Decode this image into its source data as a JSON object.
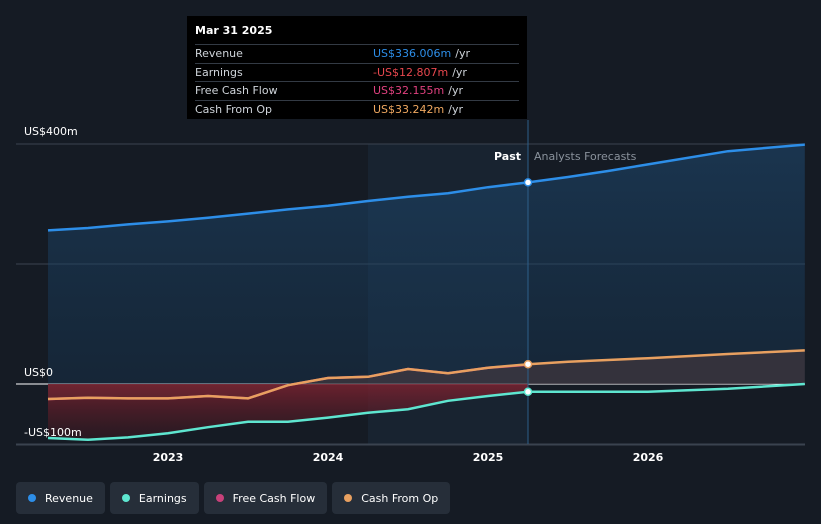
{
  "chart_data": {
    "type": "area",
    "y_unit_prefix": "US$",
    "y_axis_labels": [
      "US$400m",
      "US$0",
      "-US$100m"
    ],
    "ylim": [
      -100,
      400
    ],
    "x_tick_labels": [
      "2023",
      "2024",
      "2025",
      "2026"
    ],
    "past_label": "Past",
    "forecast_label": "Analysts Forecasts",
    "divider_date": 2025.25,
    "series": [
      {
        "name": "Revenue",
        "color": "#2d8ee8",
        "points": [
          [
            2022.25,
            256
          ],
          [
            2022.5,
            260
          ],
          [
            2022.75,
            266
          ],
          [
            2023.0,
            271
          ],
          [
            2023.25,
            277
          ],
          [
            2023.5,
            284
          ],
          [
            2023.75,
            291
          ],
          [
            2024.0,
            297
          ],
          [
            2024.25,
            305
          ],
          [
            2024.5,
            312
          ],
          [
            2024.75,
            318
          ],
          [
            2025.0,
            328
          ],
          [
            2025.25,
            336
          ],
          [
            2025.5,
            345
          ],
          [
            2025.75,
            355
          ],
          [
            2026.0,
            366
          ],
          [
            2026.5,
            388
          ],
          [
            2026.98,
            399
          ]
        ]
      },
      {
        "name": "Earnings",
        "color": "#5ee6d0",
        "points": [
          [
            2022.25,
            -90
          ],
          [
            2022.5,
            -93
          ],
          [
            2022.75,
            -89
          ],
          [
            2023.0,
            -82
          ],
          [
            2023.25,
            -72
          ],
          [
            2023.5,
            -63
          ],
          [
            2023.75,
            -63
          ],
          [
            2024.0,
            -56
          ],
          [
            2024.25,
            -48
          ],
          [
            2024.5,
            -42
          ],
          [
            2024.75,
            -28
          ],
          [
            2025.0,
            -20
          ],
          [
            2025.25,
            -13
          ],
          [
            2025.5,
            -13
          ],
          [
            2026.0,
            -13
          ],
          [
            2026.5,
            -8
          ],
          [
            2026.98,
            0
          ]
        ]
      },
      {
        "name": "Free Cash Flow",
        "color": "#c8417a",
        "points": [
          [
            2022.25,
            -25
          ],
          [
            2022.5,
            -23
          ],
          [
            2022.75,
            -24
          ],
          [
            2023.0,
            -24
          ],
          [
            2023.25,
            -20
          ],
          [
            2023.5,
            -24
          ],
          [
            2023.75,
            -2
          ],
          [
            2024.0,
            10
          ],
          [
            2024.25,
            12
          ],
          [
            2024.5,
            25
          ],
          [
            2024.75,
            18
          ],
          [
            2025.0,
            27
          ],
          [
            2025.25,
            32
          ]
        ]
      },
      {
        "name": "Cash From Op",
        "color": "#e8a060",
        "points": [
          [
            2022.25,
            -25
          ],
          [
            2022.5,
            -23
          ],
          [
            2022.75,
            -24
          ],
          [
            2023.0,
            -24
          ],
          [
            2023.25,
            -20
          ],
          [
            2023.5,
            -24
          ],
          [
            2023.75,
            -2
          ],
          [
            2024.0,
            10
          ],
          [
            2024.25,
            12
          ],
          [
            2024.5,
            25
          ],
          [
            2024.75,
            18
          ],
          [
            2025.0,
            27
          ],
          [
            2025.25,
            33
          ],
          [
            2025.5,
            37
          ],
          [
            2026.0,
            43
          ],
          [
            2026.5,
            50
          ],
          [
            2026.98,
            56
          ]
        ]
      }
    ]
  },
  "tooltip": {
    "date": "Mar 31 2025",
    "rows": [
      {
        "label": "Revenue",
        "value": "US$336.006m",
        "unit": "/yr",
        "color": "#2d8ee8"
      },
      {
        "label": "Earnings",
        "value": "-US$12.807m",
        "unit": "/yr",
        "color": "#e8474e"
      },
      {
        "label": "Free Cash Flow",
        "value": "US$32.155m",
        "unit": "/yr",
        "color": "#e0417f"
      },
      {
        "label": "Cash From Op",
        "value": "US$33.242m",
        "unit": "/yr",
        "color": "#f0a860"
      }
    ]
  },
  "legend": [
    {
      "label": "Revenue",
      "color": "#2d8ee8"
    },
    {
      "label": "Earnings",
      "color": "#5ee6d0"
    },
    {
      "label": "Free Cash Flow",
      "color": "#c8417a"
    },
    {
      "label": "Cash From Op",
      "color": "#e8a060"
    }
  ]
}
